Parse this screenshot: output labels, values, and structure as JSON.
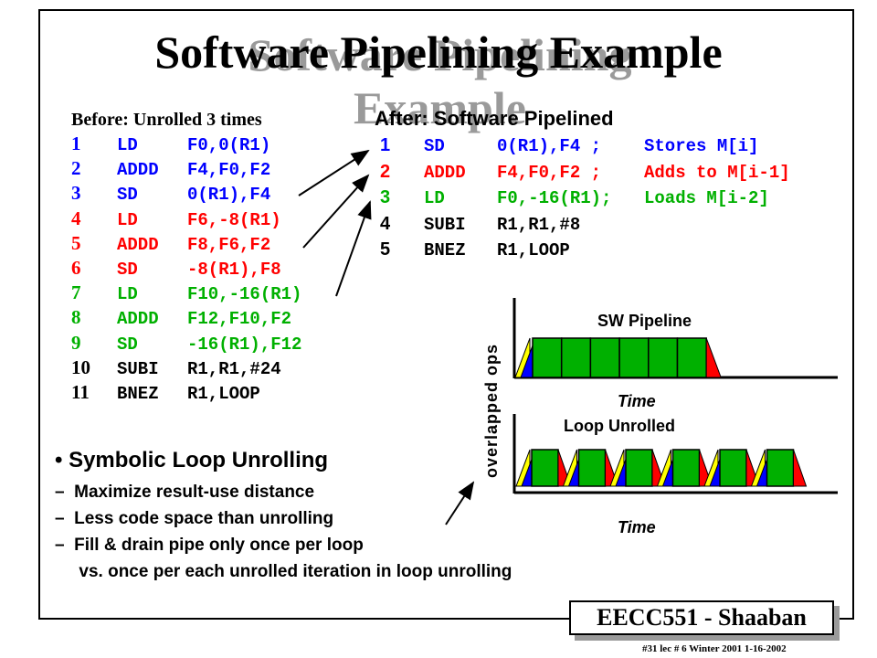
{
  "title": "Software Pipelining Example",
  "before": {
    "heading": "Before: Unrolled 3 times",
    "rows": [
      {
        "num": "1",
        "op": "LD",
        "args": "F0,0(R1)",
        "color": "blue"
      },
      {
        "num": "2",
        "op": "ADDD",
        "args": "F4,F0,F2",
        "color": "blue"
      },
      {
        "num": "3",
        "op": "SD",
        "args": "0(R1),F4",
        "color": "blue"
      },
      {
        "num": "4",
        "op": "LD",
        "args": "F6,-8(R1)",
        "color": "red"
      },
      {
        "num": "5",
        "op": "ADDD",
        "args": "F8,F6,F2",
        "color": "red"
      },
      {
        "num": "6",
        "op": "SD",
        "args": "-8(R1),F8",
        "color": "red"
      },
      {
        "num": "7",
        "op": "LD",
        "args": "F10,-16(R1)",
        "color": "green"
      },
      {
        "num": "8",
        "op": "ADDD",
        "args": "F12,F10,F2",
        "color": "green"
      },
      {
        "num": "9",
        "op": "SD",
        "args": "-16(R1),F12",
        "color": "green"
      },
      {
        "num": "10",
        "op": "SUBI",
        "args": "R1,R1,#24",
        "color": "black"
      },
      {
        "num": "11",
        "op": "BNEZ",
        "args": "R1,LOOP",
        "color": "black"
      }
    ]
  },
  "after": {
    "heading": "After: Software Pipelined",
    "rows": [
      {
        "num": "1",
        "op": "SD",
        "args": "0(R1),F4 ;",
        "comment": "Stores M[i]",
        "color": "blue"
      },
      {
        "num": "2",
        "op": "ADDD",
        "args": "F4,F0,F2 ;",
        "comment": "Adds to M[i-1]",
        "color": "red"
      },
      {
        "num": "3",
        "op": "LD",
        "args": "F0,-16(R1);",
        "comment": "Loads M[i-2]",
        "color": "green"
      },
      {
        "num": "4",
        "op": "SUBI",
        "args": "R1,R1,#8",
        "comment": "",
        "color": "black"
      },
      {
        "num": "5",
        "op": "BNEZ",
        "args": "R1,LOOP",
        "comment": "",
        "color": "black"
      }
    ]
  },
  "bullets": {
    "main": "• Symbolic Loop Unrolling",
    "items": [
      "–  Maximize result-use distance",
      "–  Less code space than unrolling",
      "–  Fill & drain pipe only once per loop",
      "     vs. once per each unrolled iteration in loop unrolling"
    ]
  },
  "charts": {
    "ylabel": "overlapped ops",
    "top_title": "SW Pipeline",
    "bottom_title": "Loop Unrolled",
    "xlabel": "Time",
    "top_segments": 6,
    "bottom_groups": 6
  },
  "colors": {
    "blue": "#0000ff",
    "red": "#ff0000",
    "green": "#00b000",
    "yellow": "#ffff00"
  },
  "footer": {
    "course": "EECC551 - Shaaban",
    "note": "#31   lec # 6  Winter 2001  1-16-2002"
  }
}
